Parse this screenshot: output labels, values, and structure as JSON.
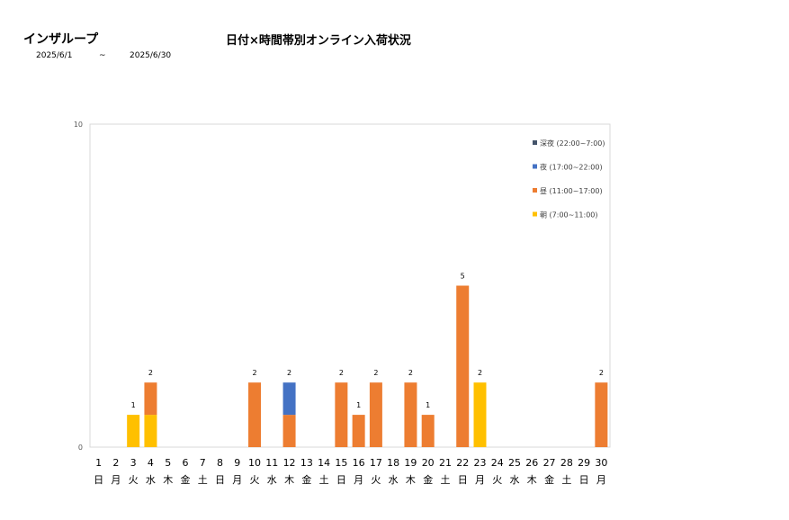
{
  "header": {
    "group_name": "インザループ",
    "title": "日付×時間帯別オンライン入荷状況",
    "date_from": "2025/6/1",
    "date_separator": "~",
    "date_to": "2025/6/30"
  },
  "chart_data": {
    "type": "bar",
    "stacked": true,
    "title": "日付×時間帯別オンライン入荷状況",
    "ylim": [
      0,
      10
    ],
    "yticks": [
      "0",
      "10"
    ],
    "categories": [
      "1",
      "2",
      "3",
      "4",
      "5",
      "6",
      "7",
      "8",
      "9",
      "10",
      "11",
      "12",
      "13",
      "14",
      "15",
      "16",
      "17",
      "18",
      "19",
      "20",
      "21",
      "22",
      "23",
      "24",
      "25",
      "26",
      "27",
      "28",
      "29",
      "30"
    ],
    "weekdays": [
      "日",
      "月",
      "火",
      "水",
      "木",
      "金",
      "土",
      "日",
      "月",
      "火",
      "水",
      "木",
      "金",
      "土",
      "日",
      "月",
      "火",
      "水",
      "木",
      "金",
      "土",
      "日",
      "月",
      "火",
      "水",
      "木",
      "金",
      "土",
      "日",
      "月"
    ],
    "series": [
      {
        "name": "朝 (7:00~11:00)",
        "color": "#FFC000",
        "values": [
          0,
          0,
          1,
          1,
          0,
          0,
          0,
          0,
          0,
          0,
          0,
          0,
          0,
          0,
          0,
          0,
          0,
          0,
          0,
          0,
          0,
          0,
          2,
          0,
          0,
          0,
          0,
          0,
          0,
          0
        ]
      },
      {
        "name": "昼 (11:00~17:00)",
        "color": "#ED7D31",
        "values": [
          0,
          0,
          0,
          1,
          0,
          0,
          0,
          0,
          0,
          2,
          0,
          1,
          0,
          0,
          2,
          1,
          2,
          0,
          2,
          1,
          0,
          5,
          0,
          0,
          0,
          0,
          0,
          0,
          0,
          2
        ]
      },
      {
        "name": "夜 (17:00~22:00)",
        "color": "#4472C4",
        "values": [
          0,
          0,
          0,
          0,
          0,
          0,
          0,
          0,
          0,
          0,
          0,
          1,
          0,
          0,
          0,
          0,
          0,
          0,
          0,
          0,
          0,
          0,
          0,
          0,
          0,
          0,
          0,
          0,
          0,
          0
        ]
      },
      {
        "name": "深夜 (22:00~7:00)",
        "color": "#44546A",
        "values": [
          0,
          0,
          0,
          0,
          0,
          0,
          0,
          0,
          0,
          0,
          0,
          0,
          0,
          0,
          0,
          0,
          0,
          0,
          0,
          0,
          0,
          0,
          0,
          0,
          0,
          0,
          0,
          0,
          0,
          0
        ]
      }
    ],
    "totals": [
      0,
      0,
      1,
      2,
      0,
      0,
      0,
      0,
      0,
      2,
      0,
      2,
      0,
      0,
      2,
      1,
      2,
      0,
      2,
      1,
      0,
      5,
      2,
      0,
      0,
      0,
      0,
      0,
      0,
      2
    ],
    "legend_order": [
      "深夜 (22:00~7:00)",
      "夜 (17:00~22:00)",
      "昼 (11:00~17:00)",
      "朝 (7:00~11:00)"
    ],
    "legend_position": "top-right"
  }
}
